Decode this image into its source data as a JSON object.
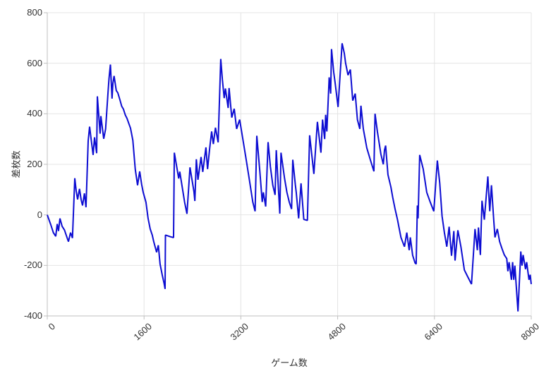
{
  "chart_data": {
    "type": "line",
    "title": "",
    "xlabel": "ゲーム数",
    "ylabel": "差枚数",
    "xlim": [
      0,
      8000
    ],
    "ylim": [
      -400,
      800
    ],
    "x_ticks": [
      0,
      1600,
      3200,
      4800,
      6400,
      8000
    ],
    "y_ticks": [
      -400,
      -200,
      0,
      200,
      400,
      600,
      800
    ],
    "grid": true,
    "legend_position": "none",
    "colors": {
      "line": "#0d0dd2",
      "grid": "#e4e4e4",
      "axis": "#bfbfbf",
      "label": "#333333",
      "background": "#ffffff"
    },
    "series": [
      {
        "name": "差枚数",
        "color": "#0d0dd2",
        "points": [
          [
            0,
            0
          ],
          [
            60,
            -40
          ],
          [
            100,
            -70
          ],
          [
            140,
            -85
          ],
          [
            165,
            -36
          ],
          [
            185,
            -64
          ],
          [
            210,
            -14
          ],
          [
            245,
            -45
          ],
          [
            285,
            -60
          ],
          [
            320,
            -85
          ],
          [
            350,
            -106
          ],
          [
            385,
            -70
          ],
          [
            416,
            -92
          ],
          [
            455,
            145
          ],
          [
            478,
            95
          ],
          [
            501,
            61
          ],
          [
            533,
            103
          ],
          [
            560,
            60
          ],
          [
            583,
            37
          ],
          [
            615,
            85
          ],
          [
            640,
            30
          ],
          [
            676,
            293
          ],
          [
            700,
            349
          ],
          [
            730,
            290
          ],
          [
            758,
            237
          ],
          [
            781,
            307
          ],
          [
            816,
            244
          ],
          [
            828,
            469
          ],
          [
            874,
            321
          ],
          [
            886,
            391
          ],
          [
            933,
            301
          ],
          [
            965,
            340
          ],
          [
            1003,
            480
          ],
          [
            1020,
            539
          ],
          [
            1044,
            595
          ],
          [
            1070,
            460
          ],
          [
            1085,
            520
          ],
          [
            1104,
            550
          ],
          [
            1140,
            492
          ],
          [
            1166,
            483
          ],
          [
            1201,
            455
          ],
          [
            1230,
            430
          ],
          [
            1259,
            418
          ],
          [
            1290,
            395
          ],
          [
            1318,
            382
          ],
          [
            1350,
            360
          ],
          [
            1376,
            343
          ],
          [
            1415,
            295
          ],
          [
            1454,
            181
          ],
          [
            1493,
            117
          ],
          [
            1528,
            172
          ],
          [
            1560,
            120
          ],
          [
            1586,
            89
          ],
          [
            1632,
            50
          ],
          [
            1667,
            -14
          ],
          [
            1702,
            -56
          ],
          [
            1735,
            -80
          ],
          [
            1760,
            -106
          ],
          [
            1807,
            -148
          ],
          [
            1835,
            -120
          ],
          [
            1865,
            -195
          ],
          [
            1900,
            -237
          ],
          [
            1930,
            -270
          ],
          [
            1947,
            -293
          ],
          [
            1953,
            -80
          ],
          [
            2040,
            -87
          ],
          [
            2087,
            -90
          ],
          [
            2100,
            246
          ],
          [
            2173,
            144
          ],
          [
            2190,
            171
          ],
          [
            2270,
            50
          ],
          [
            2309,
            4
          ],
          [
            2359,
            188
          ],
          [
            2425,
            92
          ],
          [
            2440,
            55
          ],
          [
            2464,
            220
          ],
          [
            2491,
            139
          ],
          [
            2542,
            229
          ],
          [
            2570,
            170
          ],
          [
            2623,
            267
          ],
          [
            2650,
            181
          ],
          [
            2685,
            263
          ],
          [
            2717,
            330
          ],
          [
            2745,
            280
          ],
          [
            2780,
            345
          ],
          [
            2825,
            287
          ],
          [
            2868,
            617
          ],
          [
            2895,
            535
          ],
          [
            2925,
            462
          ],
          [
            2945,
            500
          ],
          [
            2990,
            423
          ],
          [
            3005,
            502
          ],
          [
            3050,
            385
          ],
          [
            3090,
            420
          ],
          [
            3130,
            340
          ],
          [
            3180,
            377
          ],
          [
            3280,
            230
          ],
          [
            3340,
            140
          ],
          [
            3397,
            51
          ],
          [
            3436,
            14
          ],
          [
            3463,
            313
          ],
          [
            3514,
            172
          ],
          [
            3553,
            51
          ],
          [
            3572,
            89
          ],
          [
            3611,
            33
          ],
          [
            3650,
            288
          ],
          [
            3689,
            190
          ],
          [
            3728,
            117
          ],
          [
            3766,
            79
          ],
          [
            3786,
            256
          ],
          [
            3844,
            5
          ],
          [
            3863,
            246
          ],
          [
            3922,
            145
          ],
          [
            3961,
            89
          ],
          [
            4000,
            51
          ],
          [
            4038,
            23
          ],
          [
            4058,
            218
          ],
          [
            4100,
            120
          ],
          [
            4116,
            89
          ],
          [
            4155,
            -14
          ],
          [
            4195,
            125
          ],
          [
            4240,
            -18
          ],
          [
            4300,
            -22
          ],
          [
            4337,
            315
          ],
          [
            4407,
            162
          ],
          [
            4465,
            368
          ],
          [
            4524,
            246
          ],
          [
            4551,
            377
          ],
          [
            4585,
            300
          ],
          [
            4602,
            396
          ],
          [
            4621,
            330
          ],
          [
            4660,
            544
          ],
          [
            4685,
            480
          ],
          [
            4699,
            656
          ],
          [
            4735,
            565
          ],
          [
            4757,
            525
          ],
          [
            4807,
            427
          ],
          [
            4874,
            679
          ],
          [
            4910,
            640
          ],
          [
            4932,
            600
          ],
          [
            4971,
            553
          ],
          [
            5010,
            575
          ],
          [
            5049,
            452
          ],
          [
            5090,
            480
          ],
          [
            5127,
            377
          ],
          [
            5166,
            340
          ],
          [
            5185,
            432
          ],
          [
            5224,
            340
          ],
          [
            5282,
            265
          ],
          [
            5340,
            218
          ],
          [
            5399,
            172
          ],
          [
            5418,
            400
          ],
          [
            5457,
            330
          ],
          [
            5515,
            240
          ],
          [
            5555,
            200
          ],
          [
            5574,
            256
          ],
          [
            5593,
            274
          ],
          [
            5632,
            159
          ],
          [
            5680,
            110
          ],
          [
            5710,
            70
          ],
          [
            5749,
            23
          ],
          [
            5790,
            -20
          ],
          [
            5807,
            -42
          ],
          [
            5846,
            -89
          ],
          [
            5904,
            -126
          ],
          [
            5943,
            -70
          ],
          [
            5982,
            -140
          ],
          [
            6001,
            -89
          ],
          [
            6040,
            -160
          ],
          [
            6079,
            -190
          ],
          [
            6098,
            -195
          ],
          [
            6118,
            37
          ],
          [
            6129,
            -14
          ],
          [
            6156,
            237
          ],
          [
            6214,
            181
          ],
          [
            6273,
            89
          ],
          [
            6331,
            50
          ],
          [
            6389,
            14
          ],
          [
            6448,
            215
          ],
          [
            6487,
            126
          ],
          [
            6526,
            -5
          ],
          [
            6565,
            -70
          ],
          [
            6604,
            -126
          ],
          [
            6643,
            -47
          ],
          [
            6682,
            -162
          ],
          [
            6721,
            -64
          ],
          [
            6740,
            -181
          ],
          [
            6787,
            -61
          ],
          [
            6837,
            -126
          ],
          [
            6895,
            -218
          ],
          [
            6950,
            -245
          ],
          [
            7012,
            -274
          ],
          [
            7043,
            -162
          ],
          [
            7070,
            -56
          ],
          [
            7109,
            -140
          ],
          [
            7128,
            -50
          ],
          [
            7159,
            -159
          ],
          [
            7186,
            56
          ],
          [
            7225,
            -19
          ],
          [
            7283,
            152
          ],
          [
            7314,
            14
          ],
          [
            7342,
            117
          ],
          [
            7381,
            -23
          ],
          [
            7400,
            -89
          ],
          [
            7439,
            -56
          ],
          [
            7478,
            -106
          ],
          [
            7517,
            -134
          ],
          [
            7556,
            -159
          ],
          [
            7595,
            -173
          ],
          [
            7614,
            -223
          ],
          [
            7634,
            -187
          ],
          [
            7672,
            -257
          ],
          [
            7692,
            -187
          ],
          [
            7711,
            -257
          ],
          [
            7730,
            -201
          ],
          [
            7781,
            -382
          ],
          [
            7827,
            -145
          ],
          [
            7847,
            -201
          ],
          [
            7866,
            -159
          ],
          [
            7905,
            -215
          ],
          [
            7924,
            -187
          ],
          [
            7963,
            -257
          ],
          [
            7982,
            -237
          ],
          [
            8000,
            -274
          ]
        ]
      }
    ]
  }
}
